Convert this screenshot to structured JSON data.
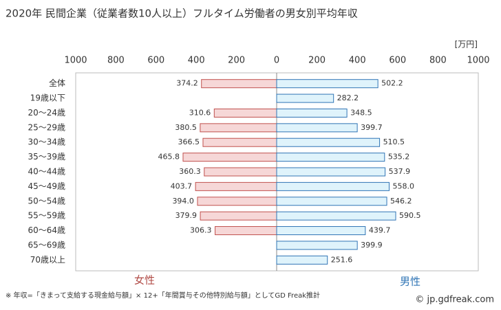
{
  "chart_data": {
    "type": "butterfly-bar",
    "title": "2020年 民間企業（従業者数10人以上）フルタイム労働者の男女別平均年収",
    "unit": "[万円]",
    "categories": [
      "全体",
      "19歳以下",
      "20〜24歳",
      "25〜29歳",
      "30〜34歳",
      "35〜39歳",
      "40〜44歳",
      "45〜49歳",
      "50〜54歳",
      "55〜59歳",
      "60〜64歳",
      "65〜69歳",
      "70歳以上"
    ],
    "series": [
      {
        "name": "女性",
        "side": "left",
        "color": "#f6d7d7",
        "edge": "#c0504d",
        "text_color": "#b04a45",
        "values": [
          374.2,
          null,
          310.6,
          380.5,
          366.5,
          465.8,
          360.3,
          403.7,
          394.0,
          379.9,
          306.3,
          null,
          null
        ],
        "value_labels": [
          "374.2",
          null,
          "310.6",
          "380.5",
          "366.5",
          "465.8",
          "360.3",
          "403.7",
          "394.0",
          "379.9",
          "306.3",
          null,
          null
        ]
      },
      {
        "name": "男性",
        "side": "right",
        "color": "#dff3fb",
        "edge": "#2f74b5",
        "text_color": "#2f74b5",
        "values": [
          502.2,
          282.2,
          348.5,
          399.7,
          510.5,
          535.2,
          537.9,
          558.0,
          546.2,
          590.5,
          439.7,
          399.9,
          251.6
        ],
        "value_labels": [
          "502.2",
          "282.2",
          "348.5",
          "399.7",
          "510.5",
          "535.2",
          "537.9",
          "558.0",
          "546.2",
          "590.5",
          "439.7",
          "399.9",
          "251.6"
        ]
      }
    ],
    "xlim_left": [
      1000,
      0
    ],
    "xticks_left": [
      1000,
      800,
      600,
      400,
      200
    ],
    "xlim": [
      0,
      1000
    ],
    "xticks": [
      0,
      200,
      400,
      600,
      800,
      1000
    ],
    "footnote": "※ 年収=「きまって支給する現金給与額」× 12+「年間賞与その他特別給与額」としてGD Freak推計",
    "credit": "© jp.gdfreak.com"
  }
}
